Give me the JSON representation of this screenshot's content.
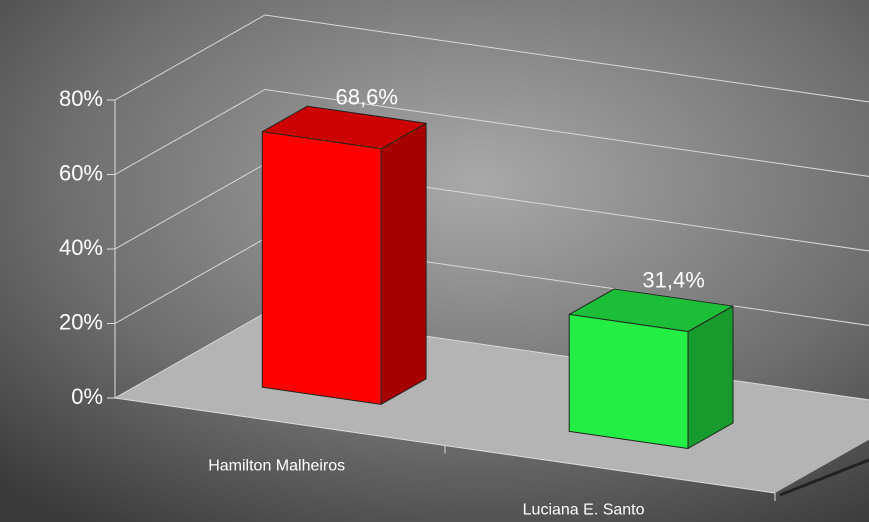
{
  "chart_data": {
    "type": "bar3d",
    "categories": [
      "Hamilton Malheiros",
      "Luciana E. Santo"
    ],
    "values": [
      68.6,
      31.4
    ],
    "value_labels": [
      "68,6%",
      "31,4%"
    ],
    "colors": [
      "#ff0000",
      "#22ee44"
    ],
    "ylim": [
      0,
      80
    ],
    "yticks": [
      {
        "value": 0,
        "label": "0%"
      },
      {
        "value": 20,
        "label": "20%"
      },
      {
        "value": 40,
        "label": "40%"
      },
      {
        "value": 60,
        "label": "60%"
      },
      {
        "value": 80,
        "label": "80%"
      }
    ],
    "grid": true
  }
}
